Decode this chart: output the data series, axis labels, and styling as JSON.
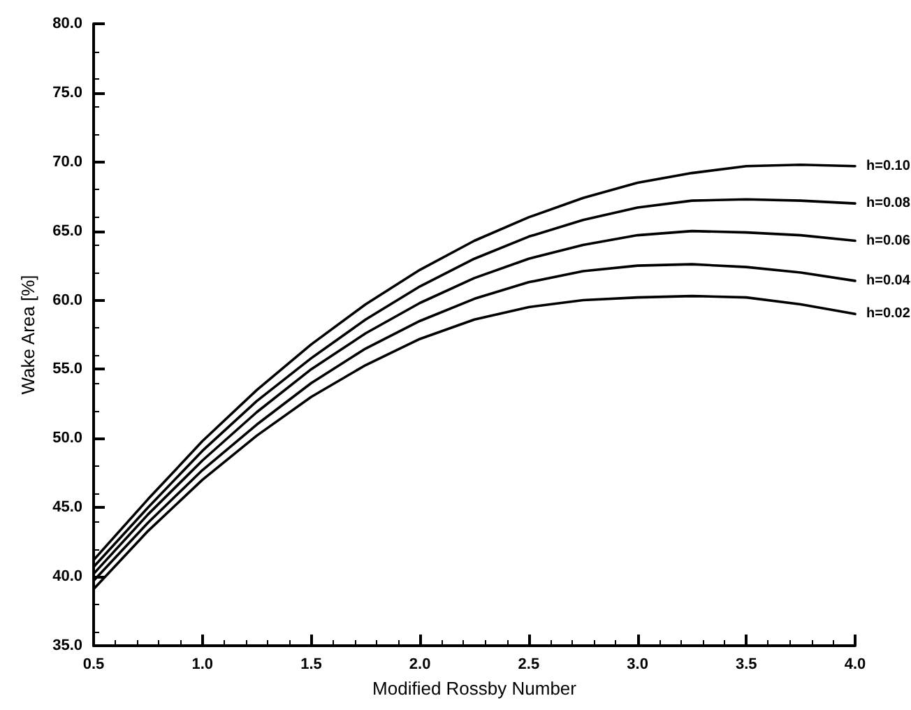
{
  "chart_data": {
    "type": "line",
    "xlabel": "Modified Rossby Number",
    "ylabel": "Wake Area [%]",
    "x": [
      0.5,
      0.75,
      1.0,
      1.25,
      1.5,
      1.75,
      2.0,
      2.25,
      2.5,
      2.75,
      3.0,
      3.25,
      3.5,
      3.75,
      4.0
    ],
    "series": [
      {
        "name": "h=0.10",
        "color": "#000000",
        "values": [
          41.2,
          45.6,
          49.8,
          53.5,
          56.8,
          59.7,
          62.2,
          64.3,
          66.0,
          67.4,
          68.5,
          69.2,
          69.7,
          69.8,
          69.7
        ]
      },
      {
        "name": "h=0.08",
        "color": "#000000",
        "values": [
          40.7,
          45.0,
          49.1,
          52.7,
          55.8,
          58.6,
          61.0,
          63.0,
          64.6,
          65.8,
          66.7,
          67.2,
          67.3,
          67.2,
          67.0
        ]
      },
      {
        "name": "h=0.06",
        "color": "#000000",
        "values": [
          40.2,
          44.5,
          48.4,
          51.9,
          55.0,
          57.6,
          59.8,
          61.6,
          63.0,
          64.0,
          64.7,
          65.0,
          64.9,
          64.7,
          64.3
        ]
      },
      {
        "name": "h=0.04",
        "color": "#000000",
        "values": [
          39.7,
          43.9,
          47.7,
          51.0,
          54.0,
          56.5,
          58.5,
          60.1,
          61.3,
          62.1,
          62.5,
          62.6,
          62.4,
          62.0,
          61.4
        ]
      },
      {
        "name": "h=0.02",
        "color": "#000000",
        "values": [
          39.1,
          43.3,
          47.0,
          50.2,
          53.0,
          55.3,
          57.2,
          58.6,
          59.5,
          60.0,
          60.2,
          60.3,
          60.2,
          59.7,
          59.0
        ]
      }
    ],
    "xlim": [
      0.5,
      4.0
    ],
    "xticks": [
      {
        "value": 0.5,
        "label": "0.5"
      },
      {
        "value": 1,
        "label": "1.0"
      },
      {
        "value": 1.5,
        "label": "1.5"
      },
      {
        "value": 2,
        "label": "2.0"
      },
      {
        "value": 2.5,
        "label": "2.5"
      },
      {
        "value": 3,
        "label": "3.0"
      },
      {
        "value": 3.5,
        "label": "3.5"
      },
      {
        "value": 4,
        "label": "4.0"
      }
    ],
    "ylim": [
      35,
      80
    ],
    "yticks": [
      {
        "value": 35,
        "label": "35.0"
      },
      {
        "value": 40,
        "label": "40.0"
      },
      {
        "value": 45,
        "label": "45.0"
      },
      {
        "value": 50,
        "label": "50.0"
      },
      {
        "value": 55,
        "label": "55.0"
      },
      {
        "value": 60,
        "label": "60.0"
      },
      {
        "value": 65,
        "label": "65.0"
      },
      {
        "value": 70,
        "label": "70.0"
      },
      {
        "value": 75,
        "label": "75.0"
      },
      {
        "value": 80,
        "label": "80.0"
      }
    ],
    "grid": false,
    "legend": false,
    "marker": "none",
    "line_style": "solid"
  }
}
